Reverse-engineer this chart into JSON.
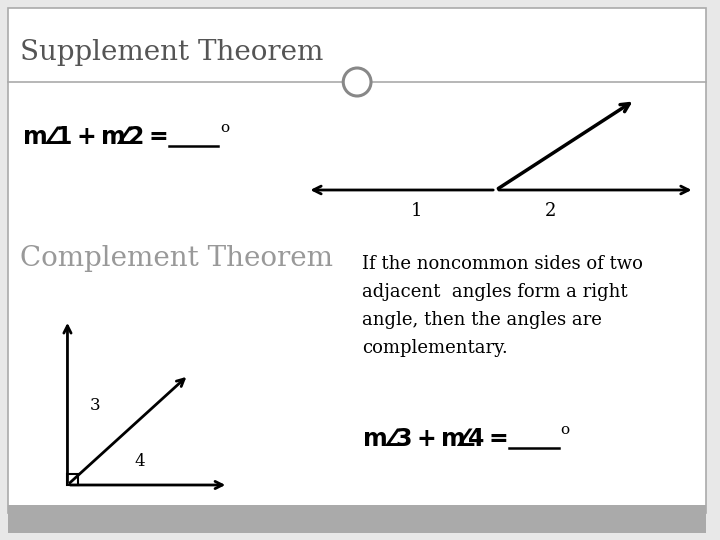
{
  "title": "Supplement Theorem",
  "subtitle": "Complement Theorem",
  "bg_color": "#e8e8e8",
  "panel_color": "#f2f2f2",
  "title_color": "#555555",
  "subtitle_color": "#999999",
  "line_color": "#000000",
  "formula1_parts": [
    "m",
    "1 + m",
    "2 = "
  ],
  "formula2_parts": [
    "m",
    "3 + m",
    "4 = "
  ],
  "degree": "o",
  "label1": "1",
  "label2": "2",
  "label3": "3",
  "label4": "4",
  "description_lines": [
    "If the noncommon sides of two",
    "adjacent  angles form a right",
    "angle, then the angles are",
    "complementary."
  ],
  "circle_color": "#888888",
  "separator_color": "#aaaaaa",
  "footer_color": "#aaaaaa",
  "border_color": "#aaaaaa"
}
